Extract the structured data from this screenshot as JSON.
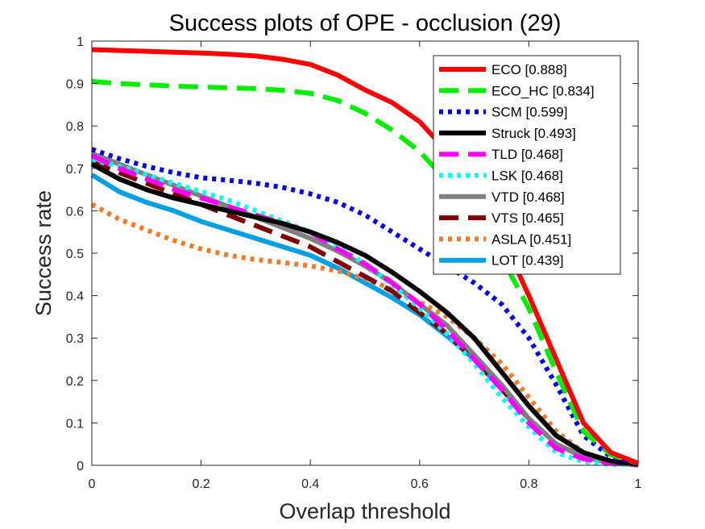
{
  "chart_data": {
    "type": "line",
    "title": "Success plots of OPE - occlusion (29)",
    "xlabel": "Overlap threshold",
    "ylabel": "Success rate",
    "xlim": [
      0,
      1
    ],
    "ylim": [
      0,
      1
    ],
    "xticks": [
      "0",
      "0.2",
      "0.4",
      "0.6",
      "0.8",
      "1"
    ],
    "yticks": [
      "0",
      "0.1",
      "0.2",
      "0.3",
      "0.4",
      "0.5",
      "0.6",
      "0.7",
      "0.8",
      "0.9",
      "1"
    ],
    "legend_position": "top-right",
    "grid": false,
    "x": [
      0,
      0.05,
      0.1,
      0.15,
      0.2,
      0.25,
      0.3,
      0.35,
      0.4,
      0.45,
      0.5,
      0.55,
      0.6,
      0.65,
      0.7,
      0.75,
      0.8,
      0.85,
      0.9,
      0.95,
      1.0
    ],
    "series": [
      {
        "name": "ECO [0.888]",
        "color": "#ff0000",
        "style": "solid",
        "values": [
          0.98,
          0.978,
          0.976,
          0.974,
          0.972,
          0.969,
          0.965,
          0.957,
          0.945,
          0.92,
          0.885,
          0.855,
          0.81,
          0.74,
          0.64,
          0.54,
          0.4,
          0.25,
          0.1,
          0.03,
          0.005
        ]
      },
      {
        "name": "ECO_HC [0.834]",
        "color": "#00ee00",
        "style": "dash",
        "values": [
          0.905,
          0.9,
          0.897,
          0.894,
          0.892,
          0.89,
          0.888,
          0.884,
          0.877,
          0.86,
          0.83,
          0.79,
          0.74,
          0.67,
          0.59,
          0.49,
          0.37,
          0.22,
          0.08,
          0.025,
          0.005
        ]
      },
      {
        "name": "SCM [0.599]",
        "color": "#0000ee",
        "style": "dot",
        "values": [
          0.745,
          0.723,
          0.705,
          0.69,
          0.678,
          0.672,
          0.665,
          0.655,
          0.64,
          0.62,
          0.59,
          0.55,
          0.51,
          0.47,
          0.43,
          0.38,
          0.3,
          0.19,
          0.07,
          0.02,
          0.005
        ]
      },
      {
        "name": "Struck [0.493]",
        "color": "#000000",
        "style": "solid",
        "values": [
          0.71,
          0.675,
          0.65,
          0.63,
          0.615,
          0.6,
          0.585,
          0.57,
          0.55,
          0.525,
          0.495,
          0.455,
          0.41,
          0.36,
          0.3,
          0.22,
          0.14,
          0.07,
          0.03,
          0.01,
          0.002
        ]
      },
      {
        "name": "TLD [0.468]",
        "color": "#ff00ff",
        "style": "dash",
        "values": [
          0.73,
          0.7,
          0.675,
          0.65,
          0.63,
          0.61,
          0.59,
          0.57,
          0.55,
          0.51,
          0.475,
          0.43,
          0.38,
          0.32,
          0.25,
          0.18,
          0.1,
          0.04,
          0.015,
          0.005,
          0.001
        ]
      },
      {
        "name": "LSK [0.468]",
        "color": "#00ffff",
        "style": "dot",
        "values": [
          0.72,
          0.705,
          0.685,
          0.665,
          0.645,
          0.625,
          0.6,
          0.575,
          0.55,
          0.515,
          0.475,
          0.425,
          0.37,
          0.31,
          0.24,
          0.16,
          0.09,
          0.03,
          0.008,
          0.002,
          0.001
        ]
      },
      {
        "name": "VTD [0.468]",
        "color": "#808080",
        "style": "solid",
        "values": [
          0.735,
          0.71,
          0.685,
          0.66,
          0.635,
          0.61,
          0.585,
          0.56,
          0.535,
          0.505,
          0.47,
          0.43,
          0.38,
          0.33,
          0.26,
          0.19,
          0.11,
          0.05,
          0.02,
          0.007,
          0.002
        ]
      },
      {
        "name": "VTS [0.465]",
        "color": "#800000",
        "style": "dash",
        "values": [
          0.715,
          0.69,
          0.665,
          0.64,
          0.615,
          0.59,
          0.565,
          0.54,
          0.515,
          0.48,
          0.445,
          0.41,
          0.36,
          0.31,
          0.25,
          0.18,
          0.11,
          0.05,
          0.02,
          0.006,
          0.002
        ]
      },
      {
        "name": "ASLA [0.451]",
        "color": "#f07c2a",
        "style": "dot",
        "values": [
          0.615,
          0.58,
          0.555,
          0.53,
          0.51,
          0.495,
          0.485,
          0.478,
          0.47,
          0.458,
          0.44,
          0.415,
          0.385,
          0.35,
          0.3,
          0.24,
          0.16,
          0.08,
          0.03,
          0.01,
          0.002
        ]
      },
      {
        "name": "LOT [0.439]",
        "color": "#00a0e6",
        "style": "solid",
        "values": [
          0.685,
          0.645,
          0.62,
          0.6,
          0.575,
          0.555,
          0.535,
          0.515,
          0.495,
          0.465,
          0.43,
          0.395,
          0.355,
          0.305,
          0.25,
          0.18,
          0.11,
          0.05,
          0.02,
          0.006,
          0.001
        ]
      }
    ]
  }
}
